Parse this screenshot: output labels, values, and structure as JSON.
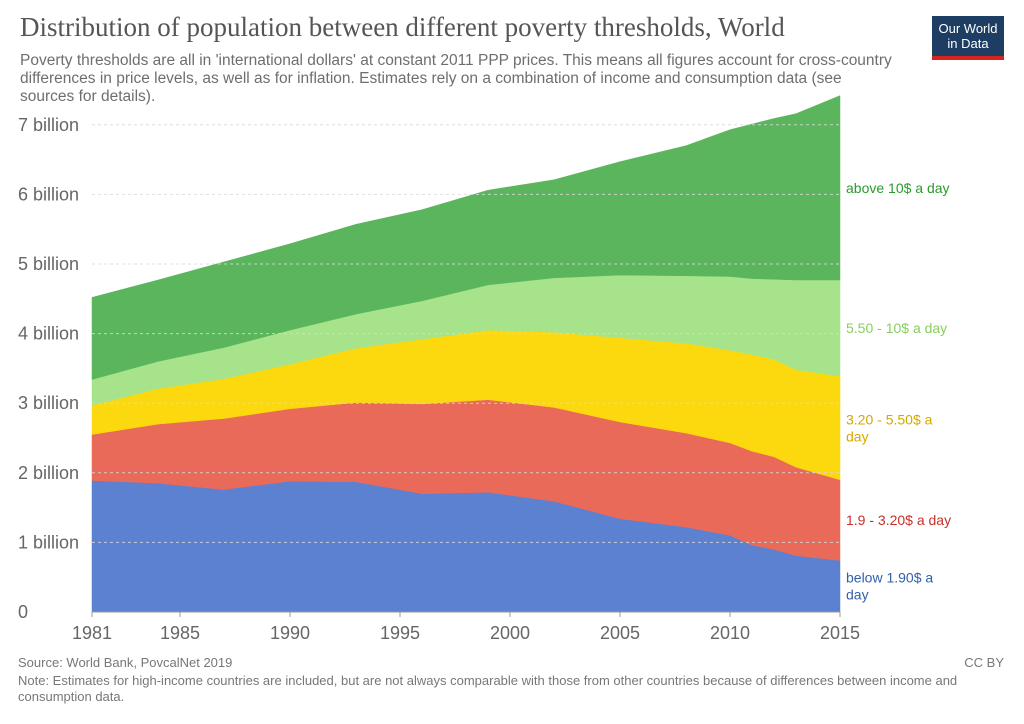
{
  "header": {
    "title": "Distribution of population between different poverty thresholds, World",
    "subtitle": "Poverty thresholds are all in 'international dollars' at constant 2011 PPP prices. This means all figures account for cross-country differences in price levels, as well as for inflation. Estimates rely on a combination of income and consumption data (see sources for details).",
    "logo_line1": "Our World",
    "logo_line2": "in Data"
  },
  "footer": {
    "source": "Source: World Bank, PovcalNet 2019",
    "license": "CC BY",
    "note": "Note: Estimates for high-income countries are included, but are not always comparable with those from other countries because of differences between income and consumption data."
  },
  "colors": {
    "below_190": "#5b81d0",
    "b190_320": "#ea6a5a",
    "b320_550": "#fcd80f",
    "b550_10": "#a7e38a",
    "above_10": "#5bb55d",
    "grid": "#d9d9d9"
  },
  "chart_data": {
    "type": "area",
    "stacked": true,
    "title": "Distribution of population between different poverty thresholds, World",
    "xlim": [
      1981,
      2015
    ],
    "ylim": [
      0,
      7500000000
    ],
    "x_ticks": [
      1981,
      1985,
      1990,
      1995,
      2000,
      2005,
      2010,
      2015
    ],
    "y_ticks": [
      {
        "value": 0,
        "label": "0"
      },
      {
        "value": 1000000000,
        "label": "1 billion"
      },
      {
        "value": 2000000000,
        "label": "2 billion"
      },
      {
        "value": 3000000000,
        "label": "3 billion"
      },
      {
        "value": 4000000000,
        "label": "4 billion"
      },
      {
        "value": 5000000000,
        "label": "5 billion"
      },
      {
        "value": 6000000000,
        "label": "6 billion"
      },
      {
        "value": 7000000000,
        "label": "7 billion"
      }
    ],
    "grid": true,
    "x": [
      1981,
      1984,
      1987,
      1990,
      1993,
      1996,
      1999,
      2002,
      2005,
      2008,
      2010,
      2011,
      2012,
      2013,
      2015
    ],
    "series": [
      {
        "name": "below 1.90$ a day",
        "color_key": "below_190",
        "values": [
          1890000000,
          1850000000,
          1760000000,
          1880000000,
          1870000000,
          1700000000,
          1720000000,
          1590000000,
          1340000000,
          1220000000,
          1100000000,
          960000000,
          900000000,
          810000000,
          740000000
        ]
      },
      {
        "name": "1.9 - 3.20$ a day",
        "color_key": "b190_320",
        "values": [
          660000000,
          850000000,
          1020000000,
          1040000000,
          1140000000,
          1290000000,
          1330000000,
          1350000000,
          1390000000,
          1350000000,
          1330000000,
          1350000000,
          1330000000,
          1270000000,
          1160000000
        ]
      },
      {
        "name": "3.20 - 5.50$ a day",
        "color_key": "b320_550",
        "values": [
          420000000,
          510000000,
          570000000,
          640000000,
          780000000,
          930000000,
          1000000000,
          1080000000,
          1210000000,
          1290000000,
          1330000000,
          1390000000,
          1400000000,
          1400000000,
          1490000000
        ]
      },
      {
        "name": "5.50 - 10$ a day",
        "color_key": "b550_10",
        "values": [
          370000000,
          390000000,
          450000000,
          490000000,
          490000000,
          550000000,
          650000000,
          780000000,
          900000000,
          970000000,
          1060000000,
          1090000000,
          1150000000,
          1290000000,
          1380000000
        ]
      },
      {
        "name": "above 10$ a day",
        "color_key": "above_10",
        "values": [
          1180000000,
          1170000000,
          1230000000,
          1240000000,
          1290000000,
          1310000000,
          1360000000,
          1410000000,
          1630000000,
          1870000000,
          2110000000,
          2220000000,
          2310000000,
          2390000000,
          2650000000
        ]
      }
    ]
  }
}
